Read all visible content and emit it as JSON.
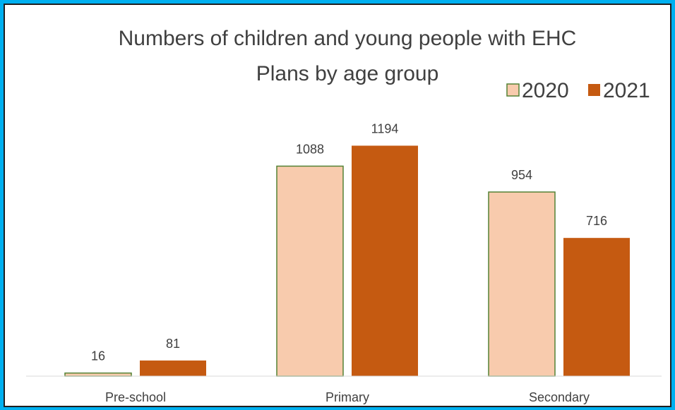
{
  "chart_data": {
    "type": "bar",
    "title_lines": [
      "Numbers of children and young people with EHC",
      "Plans by age group"
    ],
    "categories": [
      "Pre-school",
      "Primary",
      "Secondary"
    ],
    "series": [
      {
        "name": "2020",
        "values": [
          16,
          1088,
          954
        ],
        "data_labels": [
          "16",
          "1088",
          "954"
        ],
        "fill": "#f8cbad",
        "stroke": "#548235"
      },
      {
        "name": "2021",
        "values": [
          81,
          1194,
          716
        ],
        "data_labels": [
          "81",
          "1194",
          "716"
        ],
        "fill": "#c55a11",
        "stroke": "#c55a11"
      }
    ],
    "ylim": [
      0,
      1400
    ],
    "grid": false,
    "legend_position": "top-right",
    "axis_color": "#d9d9d9",
    "border_color": "#00b0f0"
  }
}
